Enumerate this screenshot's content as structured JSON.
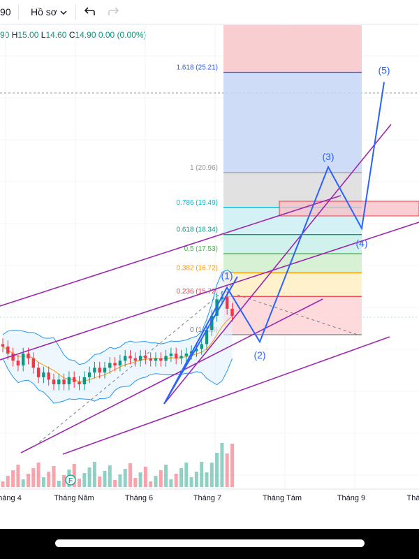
{
  "toolbar": {
    "left_value": "90",
    "profile_label": "Hồ sơ",
    "chevron": "chevron-down-icon",
    "undo_icon": "undo-icon",
    "redo_icon": "redo-icon"
  },
  "ohlc": {
    "o_tail": "90",
    "h_label": "H",
    "h_value": "15.00",
    "l_label": "L",
    "l_value": "14.60",
    "c_label": "C",
    "c_value": "14.90",
    "change": "0.00 (0.00%)"
  },
  "colors": {
    "up": "#089981",
    "down": "#f23645",
    "wave": "#2962ff",
    "channel": "#9c27b0",
    "bollinger": "#2196f3",
    "ma": "#ff9800"
  },
  "chart_data": {
    "type": "candlestick",
    "x_tick_labels": [
      "háng 4",
      "Tháng Năm",
      "Tháng 6",
      "Tháng 7",
      "Tháng Tám",
      "Tháng 9",
      "Thá"
    ],
    "price_range_visible": [
      12.0,
      27.0
    ],
    "fibonacci": {
      "levels": [
        {
          "ratio": "1.618",
          "price": 25.21,
          "label": "1.618 (25.21)"
        },
        {
          "ratio": "1",
          "price": 20.96,
          "label": "1 (20.96)"
        },
        {
          "ratio": "0.786",
          "price": 19.49,
          "label": "0.786 (19.49)"
        },
        {
          "ratio": "0.618",
          "price": 18.34,
          "label": "0.618 (18.34)"
        },
        {
          "ratio": "0.5",
          "price": 17.53,
          "label": "0.5 (17.53)"
        },
        {
          "ratio": "0.382",
          "price": 16.72,
          "label": "0.382 (16.72)"
        },
        {
          "ratio": "0.236",
          "price": 15.72,
          "label": "0.236 (15.72)"
        },
        {
          "ratio": "0",
          "price": 14.1,
          "label": "0 (14.10)"
        }
      ]
    },
    "wave_labels": [
      "(1)",
      "(2)",
      "(3)",
      "(4)",
      "(5)"
    ],
    "wave_prices": {
      "(1)": 16.1,
      "(2)": 13.8,
      "(3)": 21.2,
      "(4)": 18.6,
      "(5)": 24.8
    },
    "close_price_series": [
      13.6,
      13.3,
      13.0,
      12.8,
      13.3,
      13.1,
      12.7,
      12.3,
      12.5,
      12.2,
      12.0,
      12.2,
      12.0,
      12.3,
      12.1,
      12.0,
      12.3,
      12.5,
      12.7,
      12.5,
      12.7,
      12.9,
      12.8,
      13.0,
      13.2,
      13.1,
      13.0,
      13.2,
      13.1,
      13.0,
      13.1,
      13.0,
      13.2,
      13.3,
      13.1,
      13.2,
      13.3,
      13.4,
      13.5,
      13.7,
      14.3,
      14.9,
      15.6,
      15.7,
      15.2,
      14.9
    ],
    "special_marker": "F"
  }
}
